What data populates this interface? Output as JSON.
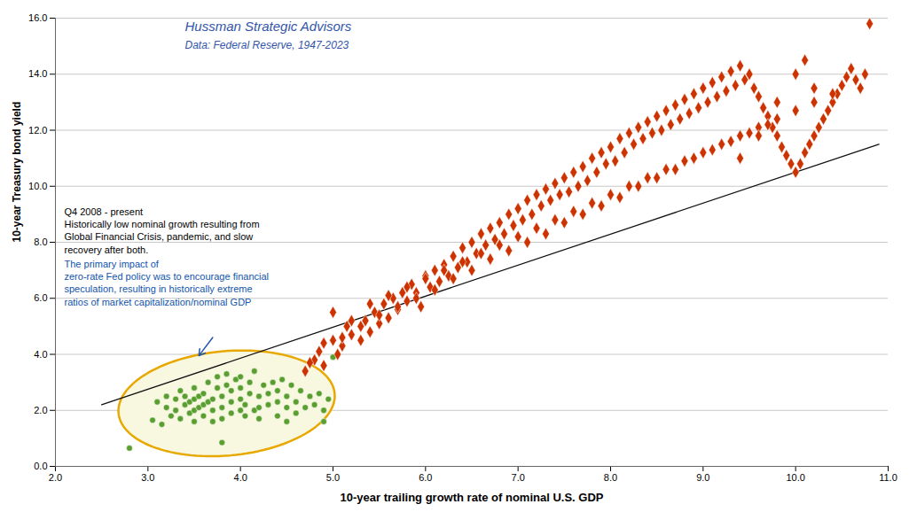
{
  "chart_data": {
    "type": "scatter",
    "title": "Hussman Strategic Advisors",
    "subtitle": "Data: Federal Reserve, 1947-2023",
    "title_color": "#3355aa",
    "xlabel": "10-year trailing growth rate of nominal U.S. GDP",
    "ylabel": "10-year Treasury bond yield",
    "xlim": [
      2.0,
      11.0
    ],
    "ylim": [
      0.0,
      16.0
    ],
    "xticks": [
      {
        "value": 2,
        "label": "2.0"
      },
      {
        "value": 3,
        "label": "3.0"
      },
      {
        "value": 4,
        "label": "4.0"
      },
      {
        "value": 5,
        "label": "5.0"
      },
      {
        "value": 6,
        "label": "6.0"
      },
      {
        "value": 7,
        "label": "7.0"
      },
      {
        "value": 8,
        "label": "8.0"
      },
      {
        "value": 9,
        "label": "9.0"
      },
      {
        "value": 10,
        "label": "10.0"
      },
      {
        "value": 11,
        "label": "11.0"
      }
    ],
    "yticks": [
      {
        "value": 0,
        "label": "0.0"
      },
      {
        "value": 2,
        "label": "2.0"
      },
      {
        "value": 4,
        "label": "4.0"
      },
      {
        "value": 6,
        "label": "6.0"
      },
      {
        "value": 8,
        "label": "8.0"
      },
      {
        "value": 10,
        "label": "10.0"
      },
      {
        "value": 12,
        "label": "12.0"
      },
      {
        "value": 14,
        "label": "14.0"
      },
      {
        "value": 16,
        "label": "16.0"
      }
    ],
    "grid": "y",
    "series": [
      {
        "type": "scatter",
        "marker": "diamond",
        "color": "#cc3300",
        "values": [
          [
            4.8,
            3.8
          ],
          [
            4.85,
            4.1
          ],
          [
            4.9,
            3.6
          ],
          [
            5.0,
            4.5
          ],
          [
            5.05,
            4.0
          ],
          [
            5.1,
            4.3
          ],
          [
            5.15,
            5.0
          ],
          [
            5.2,
            4.7
          ],
          [
            5.3,
            4.5
          ],
          [
            5.35,
            5.2
          ],
          [
            5.4,
            4.8
          ],
          [
            5.45,
            5.5
          ],
          [
            5.5,
            5.1
          ],
          [
            5.55,
            5.8
          ],
          [
            5.6,
            5.3
          ],
          [
            5.65,
            6.0
          ],
          [
            5.7,
            5.6
          ],
          [
            5.75,
            6.2
          ],
          [
            5.8,
            5.9
          ],
          [
            5.85,
            6.5
          ],
          [
            5.9,
            6.2
          ],
          [
            5.95,
            5.7
          ],
          [
            6.0,
            6.8
          ],
          [
            6.05,
            6.4
          ],
          [
            6.1,
            7.0
          ],
          [
            6.15,
            6.6
          ],
          [
            6.2,
            7.2
          ],
          [
            6.25,
            6.8
          ],
          [
            6.3,
            7.5
          ],
          [
            6.35,
            7.1
          ],
          [
            6.4,
            7.8
          ],
          [
            6.45,
            7.3
          ],
          [
            6.5,
            8.0
          ],
          [
            6.55,
            7.6
          ],
          [
            6.6,
            8.3
          ],
          [
            6.65,
            7.9
          ],
          [
            6.7,
            8.5
          ],
          [
            6.75,
            8.1
          ],
          [
            6.8,
            8.7
          ],
          [
            6.85,
            8.3
          ],
          [
            6.9,
            9.0
          ],
          [
            6.95,
            8.6
          ],
          [
            7.0,
            9.2
          ],
          [
            7.05,
            8.8
          ],
          [
            7.1,
            9.5
          ],
          [
            7.15,
            9.0
          ],
          [
            7.2,
            9.7
          ],
          [
            7.25,
            9.3
          ],
          [
            7.3,
            9.9
          ],
          [
            7.35,
            9.5
          ],
          [
            7.4,
            10.1
          ],
          [
            7.45,
            9.7
          ],
          [
            7.5,
            10.3
          ],
          [
            7.55,
            9.8
          ],
          [
            7.6,
            10.5
          ],
          [
            7.65,
            10.0
          ],
          [
            7.7,
            10.7
          ],
          [
            7.75,
            10.2
          ],
          [
            7.8,
            11.0
          ],
          [
            7.85,
            10.5
          ],
          [
            7.9,
            11.2
          ],
          [
            7.95,
            10.8
          ],
          [
            8.0,
            11.4
          ],
          [
            8.05,
            10.9
          ],
          [
            8.1,
            11.7
          ],
          [
            8.15,
            11.2
          ],
          [
            8.2,
            11.9
          ],
          [
            8.25,
            11.5
          ],
          [
            8.3,
            12.1
          ],
          [
            8.35,
            11.7
          ],
          [
            8.4,
            12.3
          ],
          [
            8.45,
            11.9
          ],
          [
            8.5,
            12.5
          ],
          [
            8.55,
            12.0
          ],
          [
            8.6,
            12.7
          ],
          [
            8.65,
            12.2
          ],
          [
            8.7,
            12.9
          ],
          [
            8.75,
            12.4
          ],
          [
            8.8,
            13.1
          ],
          [
            8.85,
            12.6
          ],
          [
            8.9,
            13.3
          ],
          [
            8.95,
            12.8
          ],
          [
            9.0,
            13.5
          ],
          [
            9.05,
            13.0
          ],
          [
            9.1,
            13.7
          ],
          [
            9.15,
            13.2
          ],
          [
            9.2,
            13.9
          ],
          [
            9.25,
            13.4
          ],
          [
            9.3,
            14.1
          ],
          [
            9.35,
            13.6
          ],
          [
            9.4,
            14.3
          ],
          [
            9.45,
            13.8
          ],
          [
            9.5,
            14.0
          ],
          [
            9.55,
            13.5
          ],
          [
            9.6,
            13.2
          ],
          [
            9.65,
            12.8
          ],
          [
            9.7,
            12.5
          ],
          [
            9.75,
            12.1
          ],
          [
            9.8,
            11.8
          ],
          [
            9.85,
            11.4
          ],
          [
            9.9,
            11.1
          ],
          [
            9.95,
            10.8
          ],
          [
            10.0,
            10.5
          ],
          [
            10.05,
            10.8
          ],
          [
            10.1,
            11.2
          ],
          [
            10.15,
            11.5
          ],
          [
            10.2,
            11.8
          ],
          [
            10.25,
            12.1
          ],
          [
            10.3,
            12.4
          ],
          [
            10.35,
            12.7
          ],
          [
            10.4,
            13.0
          ],
          [
            10.45,
            13.3
          ],
          [
            10.5,
            13.6
          ],
          [
            10.55,
            13.9
          ],
          [
            10.6,
            14.2
          ],
          [
            10.65,
            13.8
          ],
          [
            10.7,
            13.5
          ],
          [
            10.75,
            14.0
          ],
          [
            10.8,
            15.8
          ],
          [
            5.0,
            5.5
          ],
          [
            5.2,
            5.2
          ],
          [
            5.4,
            5.8
          ],
          [
            5.6,
            6.1
          ],
          [
            5.8,
            6.4
          ],
          [
            6.0,
            6.7
          ],
          [
            6.2,
            7.0
          ],
          [
            6.4,
            7.3
          ],
          [
            6.6,
            7.6
          ],
          [
            6.8,
            7.9
          ],
          [
            7.0,
            8.2
          ],
          [
            7.2,
            8.5
          ],
          [
            7.4,
            8.8
          ],
          [
            7.6,
            9.1
          ],
          [
            7.8,
            9.4
          ],
          [
            8.0,
            9.7
          ],
          [
            8.2,
            10.0
          ],
          [
            8.4,
            10.3
          ],
          [
            8.6,
            10.6
          ],
          [
            8.8,
            10.9
          ],
          [
            9.0,
            11.2
          ],
          [
            9.2,
            11.5
          ],
          [
            9.4,
            11.8
          ],
          [
            9.6,
            12.1
          ],
          [
            9.8,
            12.4
          ],
          [
            10.0,
            12.7
          ],
          [
            10.2,
            13.0
          ],
          [
            10.4,
            13.3
          ],
          [
            5.1,
            4.6
          ],
          [
            5.3,
            5.0
          ],
          [
            5.5,
            5.4
          ],
          [
            5.7,
            5.7
          ],
          [
            5.9,
            6.0
          ],
          [
            6.1,
            6.3
          ],
          [
            6.3,
            6.7
          ],
          [
            6.5,
            7.0
          ],
          [
            6.7,
            7.4
          ],
          [
            6.9,
            7.7
          ],
          [
            7.1,
            8.0
          ],
          [
            7.3,
            8.3
          ],
          [
            7.5,
            8.7
          ],
          [
            7.7,
            9.0
          ],
          [
            7.9,
            9.3
          ],
          [
            8.1,
            9.6
          ],
          [
            8.3,
            10.0
          ],
          [
            8.5,
            10.3
          ],
          [
            8.7,
            10.6
          ],
          [
            8.9,
            11.0
          ],
          [
            9.1,
            11.3
          ],
          [
            9.3,
            11.6
          ],
          [
            9.5,
            11.9
          ],
          [
            9.7,
            12.2
          ],
          [
            4.7,
            3.4
          ],
          [
            4.75,
            3.7
          ],
          [
            4.9,
            4.4
          ],
          [
            10.0,
            14.0
          ],
          [
            10.1,
            14.5
          ],
          [
            10.2,
            13.5
          ],
          [
            9.8,
            13.0
          ],
          [
            9.6,
            11.8
          ],
          [
            9.4,
            11.0
          ]
        ]
      },
      {
        "type": "scatter",
        "marker": "circle",
        "color": "#5a9e2f",
        "values": [
          [
            2.8,
            0.65
          ],
          [
            3.05,
            1.65
          ],
          [
            3.1,
            2.3
          ],
          [
            3.15,
            1.5
          ],
          [
            3.2,
            2.1
          ],
          [
            3.2,
            2.5
          ],
          [
            3.25,
            1.8
          ],
          [
            3.3,
            2.0
          ],
          [
            3.3,
            2.4
          ],
          [
            3.35,
            2.7
          ],
          [
            3.35,
            1.7
          ],
          [
            3.4,
            2.2
          ],
          [
            3.4,
            2.5
          ],
          [
            3.45,
            1.9
          ],
          [
            3.45,
            2.3
          ],
          [
            3.5,
            1.6
          ],
          [
            3.5,
            2.0
          ],
          [
            3.5,
            2.4
          ],
          [
            3.5,
            2.8
          ],
          [
            3.55,
            2.1
          ],
          [
            3.55,
            2.5
          ],
          [
            3.6,
            1.8
          ],
          [
            3.6,
            2.2
          ],
          [
            3.6,
            2.6
          ],
          [
            3.65,
            3.0
          ],
          [
            3.65,
            2.3
          ],
          [
            3.7,
            1.6
          ],
          [
            3.7,
            2.0
          ],
          [
            3.7,
            2.4
          ],
          [
            3.75,
            2.8
          ],
          [
            3.75,
            3.2
          ],
          [
            3.8,
            0.85
          ],
          [
            3.8,
            1.7
          ],
          [
            3.8,
            2.1
          ],
          [
            3.8,
            2.5
          ],
          [
            3.85,
            2.9
          ],
          [
            3.85,
            3.3
          ],
          [
            3.9,
            1.9
          ],
          [
            3.9,
            2.3
          ],
          [
            3.9,
            2.7
          ],
          [
            3.95,
            3.1
          ],
          [
            4.0,
            2.0
          ],
          [
            4.0,
            2.4
          ],
          [
            4.0,
            2.8
          ],
          [
            4.0,
            3.2
          ],
          [
            4.05,
            1.8
          ],
          [
            4.05,
            2.2
          ],
          [
            4.1,
            2.6
          ],
          [
            4.1,
            3.0
          ],
          [
            4.15,
            3.4
          ],
          [
            4.15,
            2.0
          ],
          [
            4.2,
            1.7
          ],
          [
            4.2,
            2.1
          ],
          [
            4.2,
            2.5
          ],
          [
            4.25,
            2.9
          ],
          [
            4.3,
            2.2
          ],
          [
            4.3,
            2.6
          ],
          [
            4.35,
            3.0
          ],
          [
            4.4,
            1.8
          ],
          [
            4.4,
            2.3
          ],
          [
            4.4,
            2.7
          ],
          [
            4.45,
            3.1
          ],
          [
            4.5,
            1.6
          ],
          [
            4.5,
            2.1
          ],
          [
            4.5,
            2.5
          ],
          [
            4.55,
            2.9
          ],
          [
            4.6,
            1.9
          ],
          [
            4.6,
            2.3
          ],
          [
            4.65,
            2.7
          ],
          [
            4.7,
            2.1
          ],
          [
            4.75,
            2.5
          ],
          [
            4.8,
            2.2
          ],
          [
            4.85,
            2.6
          ],
          [
            4.9,
            1.6
          ],
          [
            4.9,
            2.0
          ],
          [
            4.95,
            2.4
          ],
          [
            5.0,
            3.9
          ]
        ]
      },
      {
        "type": "line",
        "line_style": "solid",
        "color": "#111111",
        "values": [
          [
            2.5,
            2.2
          ],
          [
            10.9,
            11.5
          ]
        ]
      }
    ],
    "ellipse": {
      "center": [
        3.85,
        2.25
      ],
      "width": 2.3,
      "height": 3.8,
      "angle": -8,
      "color": "#e8a800",
      "fill": "#f8f8e0"
    },
    "annotations": [
      {
        "text": "Q4 2008 - present\nHistorically low nominal growth resulting from\nGlobal Financial Crisis, pandemic, and slow\nrecovery after both. ",
        "color": "#000000"
      },
      {
        "text": "The primary impact of\nzero-rate Fed policy was to encourage financial\nspeculation, resulting in historically extreme\nratios of market capitalization/nominal GDP",
        "color": "#1155aa"
      }
    ],
    "arrow": {
      "x1": 3.7,
      "y1": 4.6,
      "x2": 3.55,
      "y2": 3.95,
      "color": "#2255aa"
    }
  }
}
